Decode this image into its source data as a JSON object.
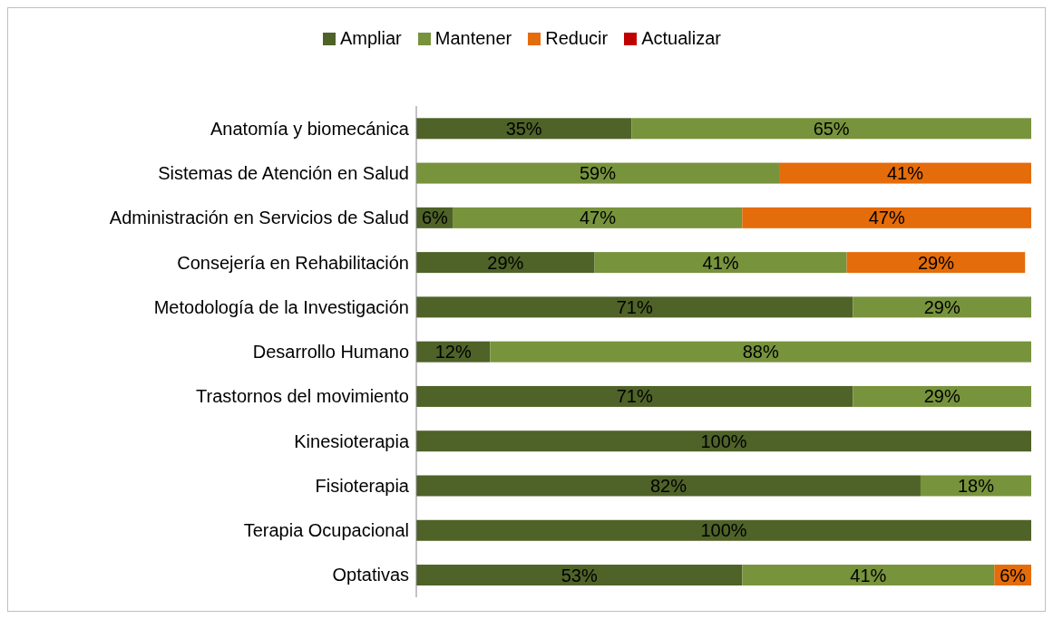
{
  "chart_data": {
    "type": "bar",
    "orientation": "horizontal",
    "stacked": true,
    "legend": "top",
    "xlim": [
      0,
      100
    ],
    "tick_labels": "y",
    "categories": [
      "Anatomía y biomecánica",
      "Sistemas de Atención en Salud",
      "Administración en Servicios de Salud",
      "Consejería en Rehabilitación",
      "Metodología de la Investigación",
      "Desarrollo Humano",
      "Trastornos del movimiento",
      "Kinesioterapia",
      "Fisioterapia",
      "Terapia Ocupacional",
      "Optativas"
    ],
    "series": [
      {
        "name": "Ampliar",
        "color": "#4f6228",
        "values": [
          35,
          null,
          6,
          29,
          71,
          12,
          71,
          100,
          82,
          100,
          53
        ],
        "value_labels": [
          "35%",
          null,
          "6%",
          "29%",
          "71%",
          "12%",
          "71%",
          "100%",
          "82%",
          "100%",
          "53%"
        ]
      },
      {
        "name": "Mantener",
        "color": "#77933c",
        "values": [
          65,
          59,
          47,
          41,
          29,
          88,
          29,
          null,
          18,
          null,
          41
        ],
        "value_labels": [
          "65%",
          "59%",
          "47%",
          "41%",
          "29%",
          "88%",
          "29%",
          null,
          "18%",
          null,
          "41%"
        ]
      },
      {
        "name": "Reducir",
        "color": "#e46c0a",
        "values": [
          null,
          41,
          47,
          29,
          null,
          null,
          null,
          null,
          null,
          null,
          6
        ],
        "value_labels": [
          null,
          "41%",
          "47%",
          "29%",
          null,
          null,
          null,
          null,
          null,
          null,
          "6%"
        ]
      },
      {
        "name": "Actualizar",
        "color": "#c00000",
        "values": [
          null,
          null,
          null,
          null,
          null,
          null,
          null,
          null,
          null,
          null,
          null
        ]
      }
    ]
  }
}
